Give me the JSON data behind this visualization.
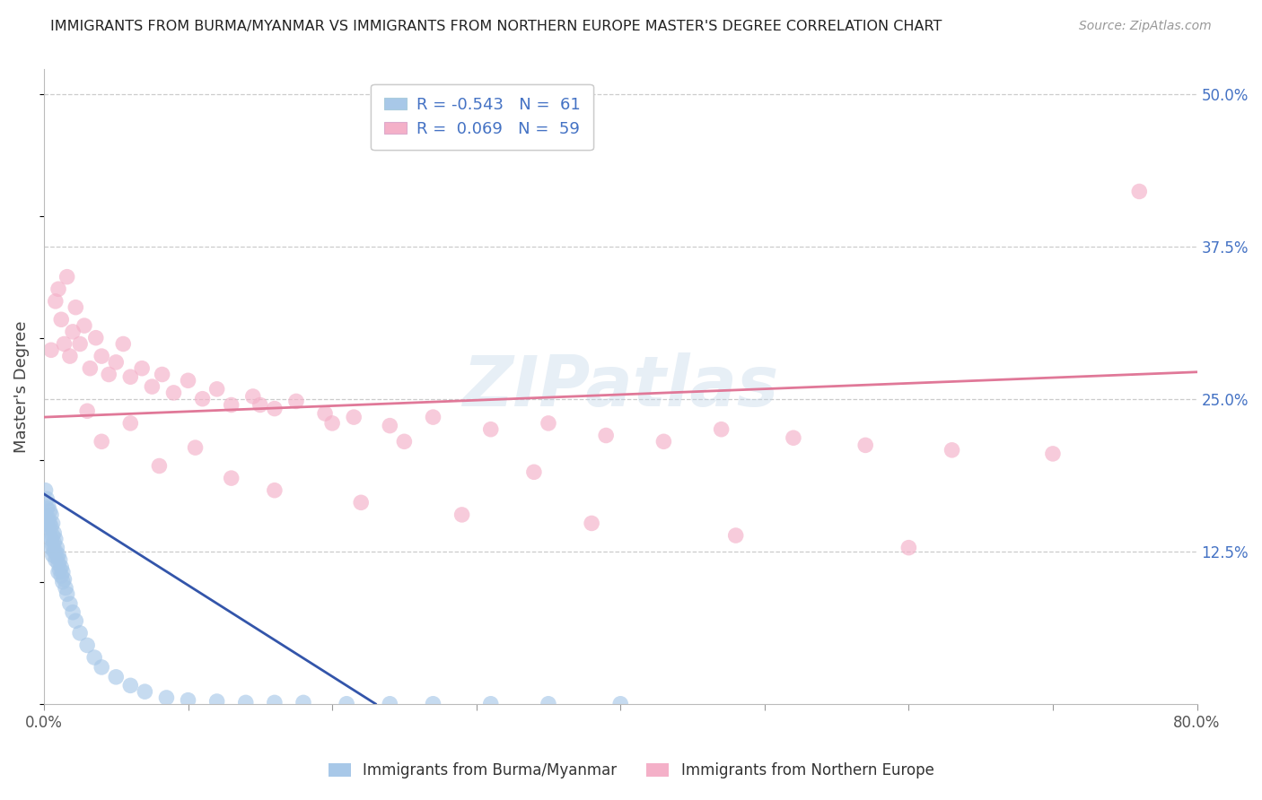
{
  "title": "IMMIGRANTS FROM BURMA/MYANMAR VS IMMIGRANTS FROM NORTHERN EUROPE MASTER'S DEGREE CORRELATION CHART",
  "source": "Source: ZipAtlas.com",
  "ylabel": "Master's Degree",
  "legend_label_blue": "Immigrants from Burma/Myanmar",
  "legend_label_pink": "Immigrants from Northern Europe",
  "legend_R_blue": "R = -0.543",
  "legend_N_blue": "N =  61",
  "legend_R_pink": "R =  0.069",
  "legend_N_pink": "N =  59",
  "blue_color": "#a8c8e8",
  "pink_color": "#f4b0c8",
  "blue_line_color": "#3355aa",
  "pink_line_color": "#e07898",
  "watermark": "ZIPatlas",
  "bg_color": "#ffffff",
  "grid_color": "#cccccc",
  "xmin": 0.0,
  "xmax": 0.8,
  "ymin": 0.0,
  "ymax": 0.52,
  "ytick_vals": [
    0.125,
    0.25,
    0.375,
    0.5
  ],
  "ytick_labels": [
    "12.5%",
    "25.0%",
    "37.5%",
    "50.0%"
  ],
  "blue_scatter_x": [
    0.001,
    0.001,
    0.002,
    0.002,
    0.002,
    0.003,
    0.003,
    0.003,
    0.004,
    0.004,
    0.004,
    0.005,
    0.005,
    0.005,
    0.005,
    0.006,
    0.006,
    0.006,
    0.006,
    0.007,
    0.007,
    0.007,
    0.008,
    0.008,
    0.008,
    0.009,
    0.009,
    0.01,
    0.01,
    0.01,
    0.011,
    0.011,
    0.012,
    0.012,
    0.013,
    0.013,
    0.014,
    0.015,
    0.016,
    0.018,
    0.02,
    0.022,
    0.025,
    0.03,
    0.035,
    0.04,
    0.05,
    0.06,
    0.07,
    0.085,
    0.1,
    0.12,
    0.14,
    0.16,
    0.18,
    0.21,
    0.24,
    0.27,
    0.31,
    0.35,
    0.4
  ],
  "blue_scatter_y": [
    0.155,
    0.175,
    0.16,
    0.148,
    0.168,
    0.152,
    0.162,
    0.145,
    0.158,
    0.148,
    0.138,
    0.155,
    0.145,
    0.135,
    0.128,
    0.148,
    0.138,
    0.13,
    0.122,
    0.14,
    0.132,
    0.125,
    0.135,
    0.125,
    0.118,
    0.128,
    0.12,
    0.122,
    0.115,
    0.108,
    0.118,
    0.11,
    0.112,
    0.105,
    0.108,
    0.1,
    0.102,
    0.095,
    0.09,
    0.082,
    0.075,
    0.068,
    0.058,
    0.048,
    0.038,
    0.03,
    0.022,
    0.015,
    0.01,
    0.005,
    0.003,
    0.002,
    0.001,
    0.001,
    0.001,
    0.0,
    0.0,
    0.0,
    0.0,
    0.0,
    0.0
  ],
  "pink_scatter_x": [
    0.005,
    0.008,
    0.01,
    0.012,
    0.014,
    0.016,
    0.018,
    0.02,
    0.022,
    0.025,
    0.028,
    0.032,
    0.036,
    0.04,
    0.045,
    0.05,
    0.055,
    0.06,
    0.068,
    0.075,
    0.082,
    0.09,
    0.1,
    0.11,
    0.12,
    0.13,
    0.145,
    0.16,
    0.175,
    0.195,
    0.215,
    0.24,
    0.27,
    0.31,
    0.35,
    0.39,
    0.43,
    0.47,
    0.52,
    0.57,
    0.63,
    0.7,
    0.76,
    0.03,
    0.04,
    0.06,
    0.08,
    0.105,
    0.13,
    0.16,
    0.22,
    0.29,
    0.38,
    0.48,
    0.6,
    0.34,
    0.25,
    0.2,
    0.15
  ],
  "pink_scatter_y": [
    0.29,
    0.33,
    0.34,
    0.315,
    0.295,
    0.35,
    0.285,
    0.305,
    0.325,
    0.295,
    0.31,
    0.275,
    0.3,
    0.285,
    0.27,
    0.28,
    0.295,
    0.268,
    0.275,
    0.26,
    0.27,
    0.255,
    0.265,
    0.25,
    0.258,
    0.245,
    0.252,
    0.242,
    0.248,
    0.238,
    0.235,
    0.228,
    0.235,
    0.225,
    0.23,
    0.22,
    0.215,
    0.225,
    0.218,
    0.212,
    0.208,
    0.205,
    0.42,
    0.24,
    0.215,
    0.23,
    0.195,
    0.21,
    0.185,
    0.175,
    0.165,
    0.155,
    0.148,
    0.138,
    0.128,
    0.19,
    0.215,
    0.23,
    0.245
  ],
  "blue_line_x": [
    0.0,
    0.23
  ],
  "blue_line_y": [
    0.172,
    0.0
  ],
  "pink_line_x": [
    0.0,
    0.8
  ],
  "pink_line_y": [
    0.235,
    0.272
  ]
}
